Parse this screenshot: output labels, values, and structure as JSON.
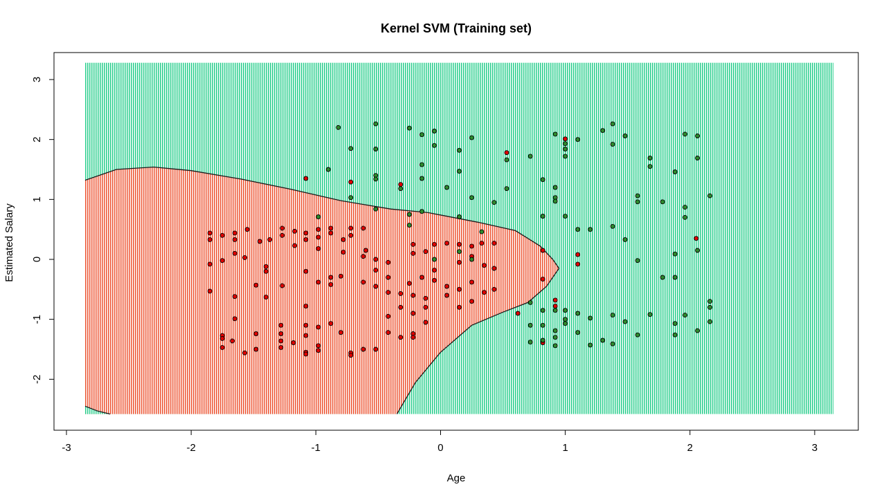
{
  "chart_data": {
    "type": "scatter",
    "title": "Kernel SVM (Training set)",
    "xlabel": "Age",
    "ylabel": "Estimated Salary",
    "xlim": [
      -3.1,
      3.35
    ],
    "ylim": [
      -2.85,
      3.45
    ],
    "x_ticks": [
      "-3",
      "-2",
      "-1",
      "0",
      "1",
      "2",
      "3"
    ],
    "y_ticks": [
      "-2",
      "-1",
      "0",
      "1",
      "2",
      "3"
    ],
    "grid": false,
    "legend": "none",
    "grid_extent": {
      "x": [
        -2.85,
        3.15
      ],
      "y": [
        -2.58,
        3.28
      ]
    },
    "region_colors": {
      "class_0": "#fa8072",
      "class_1": "#7fffd4"
    },
    "point_colors": {
      "class_0": "#e00000",
      "class_1": "#2e8b2e"
    },
    "decision_boundary": [
      [
        -2.85,
        1.32
      ],
      [
        -2.6,
        1.5
      ],
      [
        -2.3,
        1.54
      ],
      [
        -2.0,
        1.48
      ],
      [
        -1.6,
        1.34
      ],
      [
        -1.2,
        1.17
      ],
      [
        -0.8,
        0.98
      ],
      [
        -0.4,
        0.84
      ],
      [
        -0.1,
        0.78
      ],
      [
        0.3,
        0.62
      ],
      [
        0.6,
        0.48
      ],
      [
        0.8,
        0.22
      ],
      [
        0.9,
        0.0
      ],
      [
        0.95,
        -0.15
      ],
      [
        0.85,
        -0.45
      ],
      [
        0.7,
        -0.72
      ],
      [
        0.5,
        -0.88
      ],
      [
        0.25,
        -1.1
      ],
      [
        0.0,
        -1.55
      ],
      [
        -0.2,
        -2.05
      ],
      [
        -0.35,
        -2.58
      ]
    ],
    "corner_boundary": [
      [
        -2.85,
        -2.45
      ],
      [
        -2.75,
        -2.53
      ],
      [
        -2.65,
        -2.58
      ]
    ],
    "series": [
      {
        "name": "",
        "class": 0,
        "points": [
          [
            -1.85,
            0.44
          ],
          [
            -1.85,
            0.33
          ],
          [
            -1.75,
            0.4
          ],
          [
            -1.65,
            0.44
          ],
          [
            -1.65,
            0.33
          ],
          [
            -1.55,
            0.5
          ],
          [
            -1.45,
            0.3
          ],
          [
            -1.37,
            0.33
          ],
          [
            -1.27,
            0.52
          ],
          [
            -1.27,
            0.4
          ],
          [
            -1.17,
            0.47
          ],
          [
            -1.17,
            0.23
          ],
          [
            -1.08,
            0.44
          ],
          [
            -1.08,
            0.33
          ],
          [
            -0.98,
            0.5
          ],
          [
            -0.98,
            0.37
          ],
          [
            -0.88,
            0.52
          ],
          [
            -0.88,
            0.44
          ],
          [
            -0.78,
            0.33
          ],
          [
            -0.72,
            0.52
          ],
          [
            -0.72,
            0.4
          ],
          [
            -0.62,
            0.52
          ],
          [
            -0.6,
            0.15
          ],
          [
            -0.52,
            0.0
          ],
          [
            -0.42,
            -0.05
          ],
          [
            -0.22,
            0.25
          ],
          [
            -0.22,
            0.1
          ],
          [
            -0.12,
            0.13
          ],
          [
            -0.05,
            0.25
          ],
          [
            0.05,
            0.27
          ],
          [
            0.15,
            0.25
          ],
          [
            0.25,
            0.22
          ],
          [
            0.33,
            0.27
          ],
          [
            0.43,
            0.27
          ],
          [
            -1.85,
            -0.08
          ],
          [
            -1.75,
            -0.02
          ],
          [
            -1.65,
            0.1
          ],
          [
            -1.57,
            0.03
          ],
          [
            -1.4,
            -0.2
          ],
          [
            -1.4,
            -0.12
          ],
          [
            -1.4,
            -0.63
          ],
          [
            -1.48,
            -0.43
          ],
          [
            -1.27,
            -0.44
          ],
          [
            -1.08,
            -0.2
          ],
          [
            -0.98,
            -0.38
          ],
          [
            -0.88,
            -0.42
          ],
          [
            -0.88,
            -0.3
          ],
          [
            -0.8,
            -0.28
          ],
          [
            -0.62,
            -0.38
          ],
          [
            -0.52,
            -0.45
          ],
          [
            -0.42,
            -0.55
          ],
          [
            -0.32,
            -0.57
          ],
          [
            -0.25,
            -0.4
          ],
          [
            -0.15,
            -0.3
          ],
          [
            -0.05,
            -0.35
          ],
          [
            0.05,
            -0.45
          ],
          [
            0.15,
            -0.5
          ],
          [
            0.25,
            -0.38
          ],
          [
            0.35,
            -0.55
          ],
          [
            0.43,
            -0.5
          ],
          [
            -1.85,
            -0.53
          ],
          [
            -1.65,
            -0.62
          ],
          [
            -1.65,
            -0.99
          ],
          [
            -1.75,
            -1.27
          ],
          [
            -1.75,
            -1.32
          ],
          [
            -1.75,
            -1.47
          ],
          [
            -1.67,
            -1.36
          ],
          [
            -1.57,
            -1.56
          ],
          [
            -1.48,
            -1.5
          ],
          [
            -1.48,
            -1.24
          ],
          [
            -1.28,
            -1.1
          ],
          [
            -1.28,
            -1.24
          ],
          [
            -1.28,
            -1.36
          ],
          [
            -1.28,
            -1.47
          ],
          [
            -1.18,
            -1.39
          ],
          [
            -1.08,
            -1.1
          ],
          [
            -1.08,
            -1.27
          ],
          [
            -1.08,
            -1.55
          ],
          [
            -1.08,
            -1.58
          ],
          [
            -0.98,
            -1.44
          ],
          [
            -0.98,
            -1.52
          ],
          [
            -0.98,
            -1.13
          ],
          [
            -0.88,
            -1.07
          ],
          [
            -0.8,
            -1.22
          ],
          [
            -0.72,
            -1.56
          ],
          [
            -0.72,
            -1.6
          ],
          [
            -0.62,
            -1.5
          ],
          [
            -0.52,
            -1.5
          ],
          [
            -0.42,
            -1.22
          ],
          [
            -0.42,
            -0.95
          ],
          [
            -0.32,
            -0.8
          ],
          [
            -0.32,
            -1.3
          ],
          [
            -0.22,
            -0.9
          ],
          [
            -0.22,
            -1.24
          ],
          [
            -0.22,
            -1.3
          ],
          [
            -0.12,
            -1.05
          ],
          [
            -0.12,
            -0.8
          ],
          [
            0.05,
            -0.6
          ],
          [
            0.15,
            -0.8
          ],
          [
            0.25,
            -0.7
          ],
          [
            -1.08,
            -0.78
          ],
          [
            -0.98,
            0.18
          ],
          [
            -0.78,
            0.12
          ],
          [
            -0.62,
            0.05
          ],
          [
            -0.52,
            -0.18
          ],
          [
            -0.42,
            -0.3
          ],
          [
            -0.22,
            -0.6
          ],
          [
            -0.12,
            -0.65
          ],
          [
            -0.05,
            -0.18
          ],
          [
            0.15,
            -0.05
          ],
          [
            0.25,
            0.05
          ],
          [
            0.35,
            -0.1
          ],
          [
            0.43,
            -0.15
          ],
          [
            -1.08,
            1.35
          ],
          [
            -0.72,
            1.29
          ],
          [
            -0.32,
            1.25
          ],
          [
            0.53,
            1.78
          ],
          [
            1.0,
            2.01
          ],
          [
            0.82,
            0.72
          ],
          [
            0.82,
            -0.33
          ],
          [
            0.92,
            -0.68
          ],
          [
            0.92,
            -0.78
          ],
          [
            0.62,
            -0.9
          ],
          [
            0.82,
            -1.37
          ],
          [
            0.82,
            -1.39
          ],
          [
            1.1,
            0.08
          ],
          [
            1.1,
            -0.08
          ],
          [
            2.05,
            0.35
          ],
          [
            0.82,
            0.15
          ]
        ]
      },
      {
        "name": "",
        "class": 1,
        "points": [
          [
            -0.82,
            2.2
          ],
          [
            -0.52,
            2.26
          ],
          [
            -0.25,
            2.19
          ],
          [
            -0.05,
            2.14
          ],
          [
            -0.15,
            2.08
          ],
          [
            -0.05,
            1.9
          ],
          [
            -0.72,
            1.85
          ],
          [
            -0.52,
            1.84
          ],
          [
            -0.72,
            1.03
          ],
          [
            -0.9,
            1.5
          ],
          [
            -0.52,
            1.4
          ],
          [
            -0.52,
            1.34
          ],
          [
            -0.32,
            1.18
          ],
          [
            -0.15,
            1.58
          ],
          [
            -0.15,
            1.35
          ],
          [
            -0.15,
            0.8
          ],
          [
            -0.25,
            0.75
          ],
          [
            0.05,
            1.2
          ],
          [
            0.15,
            1.82
          ],
          [
            0.15,
            1.47
          ],
          [
            0.25,
            2.03
          ],
          [
            0.25,
            1.03
          ],
          [
            0.43,
            0.95
          ],
          [
            0.15,
            0.71
          ],
          [
            0.53,
            1.66
          ],
          [
            0.53,
            1.18
          ],
          [
            -0.52,
            0.84
          ],
          [
            -0.98,
            0.71
          ],
          [
            -0.25,
            0.57
          ],
          [
            0.72,
            1.72
          ],
          [
            0.82,
            1.33
          ],
          [
            0.92,
            2.09
          ],
          [
            1.0,
            1.93
          ],
          [
            1.0,
            1.84
          ],
          [
            1.0,
            1.72
          ],
          [
            1.1,
            2.0
          ],
          [
            1.3,
            2.15
          ],
          [
            1.38,
            2.26
          ],
          [
            1.38,
            1.92
          ],
          [
            1.48,
            2.06
          ],
          [
            0.92,
            1.2
          ],
          [
            0.92,
            1.03
          ],
          [
            0.92,
            0.97
          ],
          [
            0.82,
            0.72
          ],
          [
            1.0,
            0.72
          ],
          [
            1.1,
            0.5
          ],
          [
            1.2,
            0.5
          ],
          [
            1.38,
            0.55
          ],
          [
            1.48,
            0.33
          ],
          [
            1.58,
            1.06
          ],
          [
            1.58,
            0.96
          ],
          [
            1.68,
            1.69
          ],
          [
            1.68,
            1.55
          ],
          [
            1.78,
            0.96
          ],
          [
            1.88,
            1.46
          ],
          [
            1.96,
            2.09
          ],
          [
            2.06,
            2.06
          ],
          [
            2.06,
            1.69
          ],
          [
            1.96,
            0.87
          ],
          [
            1.96,
            0.7
          ],
          [
            2.16,
            1.06
          ],
          [
            2.06,
            0.15
          ],
          [
            1.88,
            0.09
          ],
          [
            1.58,
            -0.02
          ],
          [
            1.78,
            -0.3
          ],
          [
            1.88,
            -0.3
          ],
          [
            0.33,
            0.46
          ],
          [
            0.25,
            0.0
          ],
          [
            -0.05,
            0.0
          ],
          [
            0.15,
            0.13
          ],
          [
            1.0,
            -0.85
          ],
          [
            1.0,
            -1.0
          ],
          [
            1.0,
            -1.07
          ],
          [
            1.1,
            -0.9
          ],
          [
            1.2,
            -0.98
          ],
          [
            0.92,
            -0.85
          ],
          [
            0.82,
            -1.1
          ],
          [
            0.72,
            -0.72
          ],
          [
            0.72,
            -1.1
          ],
          [
            0.72,
            -1.38
          ],
          [
            0.82,
            -1.35
          ],
          [
            0.92,
            -1.19
          ],
          [
            0.92,
            -1.3
          ],
          [
            0.92,
            -1.44
          ],
          [
            1.1,
            -1.22
          ],
          [
            1.2,
            -1.43
          ],
          [
            1.3,
            -1.35
          ],
          [
            1.38,
            -0.93
          ],
          [
            1.38,
            -1.41
          ],
          [
            1.48,
            -1.04
          ],
          [
            1.58,
            -1.26
          ],
          [
            1.68,
            -0.92
          ],
          [
            1.88,
            -1.07
          ],
          [
            1.88,
            -1.26
          ],
          [
            1.96,
            -0.93
          ],
          [
            2.06,
            -1.19
          ],
          [
            2.16,
            -0.7
          ],
          [
            2.16,
            -0.8
          ],
          [
            2.16,
            -1.04
          ],
          [
            0.82,
            -0.85
          ]
        ]
      }
    ]
  }
}
